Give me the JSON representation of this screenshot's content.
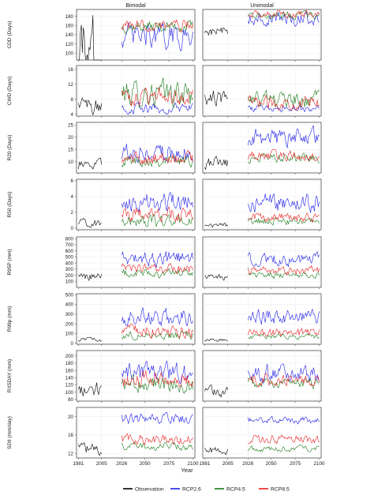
{
  "chart_data": {
    "type": "line",
    "facet_columns": [
      "Bimodal",
      "Unimodal"
    ],
    "xlabel": "Year",
    "x_tick_labels": [
      "1981",
      "2005",
      "2026",
      "2050",
      "2075",
      "2100"
    ],
    "x_ticks": [
      1981,
      2005,
      2026,
      2050,
      2075,
      2100
    ],
    "legend": {
      "position": "bottom",
      "entries": [
        {
          "name": "Observation",
          "color": "#000000"
        },
        {
          "name": "RCP2.6",
          "color": "#1f1fe8"
        },
        {
          "name": "RCP4.5",
          "color": "#1a7a1a"
        },
        {
          "name": "RCP8.5",
          "color": "#e81f1f"
        }
      ]
    },
    "grid": true,
    "panels": [
      {
        "ylabel": "CDD (Days)",
        "ylim": [
          85,
          195
        ],
        "yticks": [
          100,
          120,
          140,
          160,
          180
        ],
        "bimodal": {
          "obs": [
            88,
            96
          ],
          "rcp26": [
            135,
            25
          ],
          "rcp45": [
            158,
            12
          ],
          "rcp85": [
            160,
            12
          ]
        },
        "unimodal": {
          "obs": [
            148,
            10
          ],
          "rcp26": [
            175,
            14
          ],
          "rcp45": [
            183,
            8
          ],
          "rcp85": [
            186,
            8
          ]
        }
      },
      {
        "ylabel": "CWD (Days)",
        "ylim": [
          3.5,
          17
        ],
        "yticks": [
          4,
          8,
          12,
          16
        ],
        "bimodal": {
          "obs": [
            6.5,
            2.2
          ],
          "rcp26": [
            5.5,
            1.3
          ],
          "rcp45": [
            9.5,
            3.4
          ],
          "rcp85": [
            8.5,
            2.2
          ]
        },
        "unimodal": {
          "obs": [
            8.5,
            2.2
          ],
          "rcp26": [
            5.5,
            0.9
          ],
          "rcp45": [
            8,
            2.2
          ],
          "rcp85": [
            7,
            1.6
          ]
        }
      },
      {
        "ylabel": "R20 (Days)",
        "ylim": [
          5.5,
          26
        ],
        "yticks": [
          10,
          15,
          20,
          25
        ],
        "bimodal": {
          "obs": [
            9,
            2.2
          ],
          "rcp26": [
            14,
            3.2
          ],
          "rcp45": [
            10.5,
            2.2
          ],
          "rcp85": [
            11.5,
            2.4
          ]
        },
        "unimodal": {
          "obs": [
            9.5,
            2.2
          ],
          "rcp26": [
            19.5,
            3.6
          ],
          "rcp45": [
            11.5,
            1.8
          ],
          "rcp85": [
            12.5,
            2
          ]
        }
      },
      {
        "ylabel": "R50 (Days)",
        "ylim": [
          -0.2,
          6.2
        ],
        "yticks": [
          0,
          2,
          4,
          6
        ],
        "bimodal": {
          "obs": [
            0.6,
            0.5
          ],
          "rcp26": [
            3.3,
            1.1
          ],
          "rcp45": [
            0.9,
            0.7
          ],
          "rcp85": [
            1.8,
            0.9
          ]
        },
        "unimodal": {
          "obs": [
            0.3,
            0.3
          ],
          "rcp26": [
            3.2,
            1.1
          ],
          "rcp45": [
            0.9,
            0.5
          ],
          "rcp85": [
            1.3,
            0.6
          ]
        }
      },
      {
        "ylabel": "R95P (mm)",
        "ylim": [
          0,
          830
        ],
        "yticks": [
          100,
          200,
          300,
          400,
          500,
          600,
          700,
          800
        ],
        "bimodal": {
          "obs": [
            180,
            60
          ],
          "rcp26": [
            470,
            120
          ],
          "rcp45": [
            230,
            70
          ],
          "rcp85": [
            300,
            80
          ]
        },
        "unimodal": {
          "obs": [
            170,
            50
          ],
          "rcp26": [
            450,
            110
          ],
          "rcp45": [
            200,
            50
          ],
          "rcp85": [
            280,
            70
          ]
        }
      },
      {
        "ylabel": "R99p (mm)",
        "ylim": [
          -10,
          510
        ],
        "yticks": [
          0,
          100,
          200,
          300,
          400,
          500
        ],
        "bimodal": {
          "obs": [
            40,
            20
          ],
          "rcp26": [
            270,
            80
          ],
          "rcp45": [
            80,
            40
          ],
          "rcp85": [
            130,
            60
          ]
        },
        "unimodal": {
          "obs": [
            35,
            15
          ],
          "rcp26": [
            270,
            70
          ],
          "rcp45": [
            70,
            25
          ],
          "rcp85": [
            110,
            50
          ]
        }
      },
      {
        "ylabel": "RX5DAY (mm)",
        "ylim": [
          75,
          215
        ],
        "yticks": [
          80,
          100,
          120,
          140,
          160,
          180,
          200
        ],
        "bimodal": {
          "obs": [
            105,
            20
          ],
          "rcp26": [
            150,
            28
          ],
          "rcp45": [
            120,
            22
          ],
          "rcp85": [
            135,
            22
          ]
        },
        "unimodal": {
          "obs": [
            100,
            15
          ],
          "rcp26": [
            155,
            22
          ],
          "rcp45": [
            125,
            14
          ],
          "rcp85": [
            135,
            16
          ]
        }
      },
      {
        "ylabel": "SDII (mm/day)",
        "ylim": [
          11,
          22
        ],
        "yticks": [
          12,
          16,
          20
        ],
        "bimodal": {
          "obs": [
            13,
            1.2
          ],
          "rcp26": [
            19.5,
            1.1
          ],
          "rcp45": [
            13.5,
            0.9
          ],
          "rcp85": [
            15,
            1.1
          ]
        },
        "unimodal": {
          "obs": [
            12.5,
            0.8
          ],
          "rcp26": [
            19.2,
            0.7
          ],
          "rcp45": [
            13,
            0.6
          ],
          "rcp85": [
            15,
            0.9
          ]
        }
      }
    ]
  }
}
